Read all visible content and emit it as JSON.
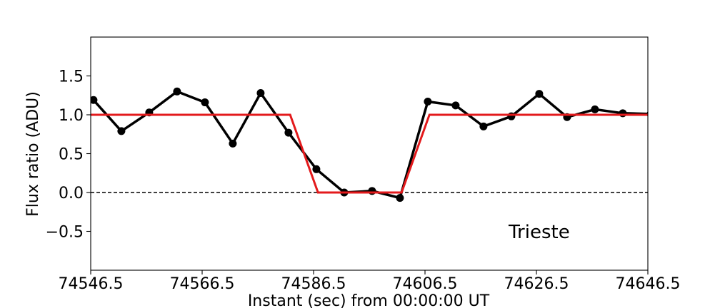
{
  "chart_data": {
    "type": "line",
    "xlabel": "Instant (sec) from 00:00:00 UT",
    "ylabel": "Flux ratio (ADU)",
    "xlim": [
      74546.5,
      74646.5
    ],
    "ylim": [
      -1.0,
      2.0
    ],
    "xticks": [
      74546.5,
      74566.5,
      74586.5,
      74606.5,
      74626.5,
      74646.5
    ],
    "xtick_labels": [
      "74546.5",
      "74566.5",
      "74586.5",
      "74606.5",
      "74626.5",
      "74646.5"
    ],
    "yticks": [
      -0.5,
      0.0,
      0.5,
      1.0,
      1.5
    ],
    "ytick_labels": [
      "−0.5",
      "0.0",
      "0.5",
      "1.0",
      "1.5"
    ],
    "annotation": "Trieste",
    "reference_line": {
      "y": 0.0,
      "style": "dashed",
      "color": "#000000"
    },
    "series": [
      {
        "style": "line-markers",
        "color": "#000000",
        "x": [
          74547.0,
          74552.0,
          74557.0,
          74562.0,
          74567.0,
          74572.0,
          74577.0,
          74582.0,
          74587.0,
          74592.0,
          74597.0,
          74602.0,
          74607.0,
          74612.0,
          74617.0,
          74622.0,
          74627.0,
          74632.0,
          74637.0,
          74642.0,
          74647.0
        ],
        "y": [
          1.19,
          0.79,
          1.03,
          1.3,
          1.16,
          0.63,
          1.28,
          0.77,
          0.3,
          0.0,
          0.02,
          -0.07,
          1.17,
          1.12,
          0.85,
          0.98,
          1.27,
          0.97,
          1.07,
          1.02,
          1.01
        ]
      },
      {
        "style": "line",
        "color": "#e31a1c",
        "x": [
          74546.5,
          74582.3,
          74587.3,
          74602.3,
          74607.3,
          74646.5
        ],
        "y": [
          1.0,
          1.0,
          0.0,
          0.0,
          1.0,
          1.0
        ]
      }
    ]
  }
}
